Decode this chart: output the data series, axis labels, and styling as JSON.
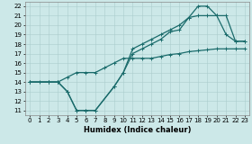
{
  "xlabel": "Humidex (Indice chaleur)",
  "background_color": "#cce8e8",
  "grid_color": "#aacccc",
  "line_color": "#1a6b6b",
  "xlim": [
    -0.5,
    23.5
  ],
  "ylim": [
    10.5,
    22.5
  ],
  "xticks": [
    0,
    1,
    2,
    3,
    4,
    5,
    6,
    7,
    8,
    9,
    10,
    11,
    12,
    13,
    14,
    15,
    16,
    17,
    18,
    19,
    20,
    21,
    22,
    23
  ],
  "yticks": [
    11,
    12,
    13,
    14,
    15,
    16,
    17,
    18,
    19,
    20,
    21,
    22
  ],
  "line1_x": [
    0,
    1,
    2,
    3,
    4,
    5,
    6,
    7,
    8,
    9,
    10,
    11,
    12,
    13,
    14,
    15,
    16,
    17,
    18,
    19,
    20,
    21,
    22,
    23
  ],
  "line1_y": [
    14.0,
    14.0,
    14.0,
    14.0,
    14.5,
    15.0,
    15.0,
    15.0,
    15.5,
    16.0,
    16.5,
    16.5,
    16.5,
    16.5,
    16.7,
    16.9,
    17.0,
    17.2,
    17.3,
    17.4,
    17.5,
    17.5,
    17.5,
    17.5
  ],
  "line2_x": [
    0,
    2,
    3,
    4,
    5,
    6,
    7,
    9,
    10,
    11,
    12,
    13,
    14,
    15,
    16,
    17,
    18,
    19,
    20,
    21,
    22,
    23
  ],
  "line2_y": [
    14.0,
    14.0,
    14.0,
    13.0,
    11.0,
    11.0,
    11.0,
    13.5,
    15.0,
    17.0,
    17.5,
    18.0,
    18.5,
    19.3,
    19.5,
    20.8,
    21.0,
    21.0,
    21.0,
    19.0,
    18.3,
    18.3
  ],
  "line3_x": [
    0,
    2,
    3,
    4,
    5,
    6,
    7,
    9,
    10,
    11,
    12,
    13,
    14,
    15,
    16,
    17,
    18,
    19,
    20,
    21,
    22,
    23
  ],
  "line3_y": [
    14.0,
    14.0,
    14.0,
    13.0,
    11.0,
    11.0,
    11.0,
    13.5,
    15.0,
    17.5,
    18.0,
    18.5,
    19.0,
    19.5,
    20.0,
    20.8,
    22.0,
    22.0,
    21.0,
    21.0,
    18.3,
    18.3
  ],
  "marker": "+",
  "markersize": 3,
  "linewidth": 0.9,
  "label_fontsize": 6,
  "tick_fontsize": 5
}
